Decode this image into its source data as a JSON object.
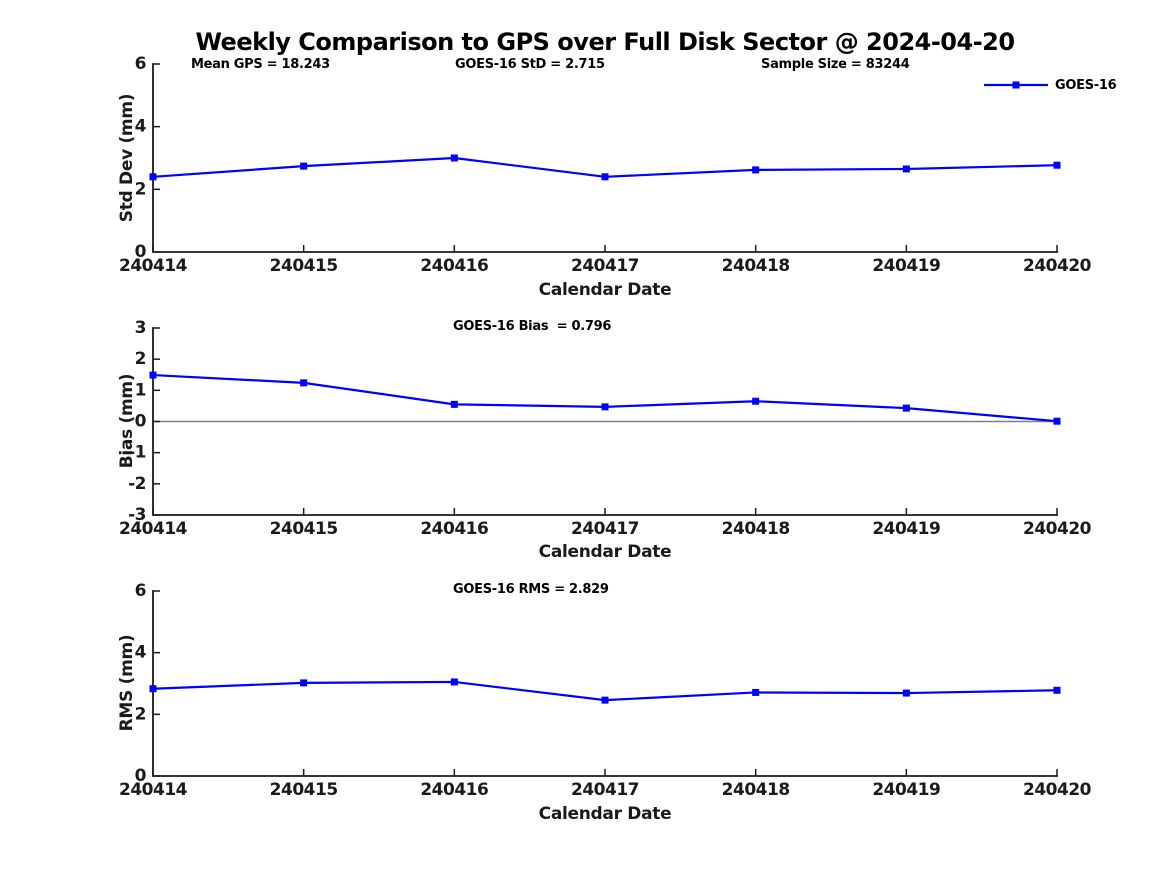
{
  "title": "Weekly Comparison to GPS over Full Disk Sector @ 2024-04-20",
  "legend": {
    "label": "GOES-16"
  },
  "colors": {
    "line": "#0000FF",
    "axis": "#1A1A1A",
    "text": "#000000",
    "zero_line": "#808080",
    "background": "#FFFFFF"
  },
  "chart_data": [
    {
      "type": "line",
      "name": "std-dev-subplot",
      "annotations": [
        {
          "text": "Mean GPS = 18.243"
        },
        {
          "text": "GOES-16 StD = 2.715"
        },
        {
          "text": "Sample Size = 83244"
        }
      ],
      "categories": [
        "240414",
        "240415",
        "240416",
        "240417",
        "240418",
        "240419",
        "240420"
      ],
      "series": [
        {
          "name": "GOES-16",
          "color": "#0000FF",
          "marker": "square",
          "values": [
            2.4,
            2.74,
            3.0,
            2.4,
            2.62,
            2.65,
            2.77
          ]
        }
      ],
      "xlabel": "Calendar Date",
      "ylabel": "Std Dev (mm)",
      "ylim": [
        0,
        6
      ],
      "yticks": [
        0,
        2,
        4,
        6
      ],
      "ytick_labels": [
        "0",
        "2",
        "4",
        "6"
      ],
      "zero_line": false,
      "grid": false,
      "legend_position": "top-right"
    },
    {
      "type": "line",
      "name": "bias-subplot",
      "annotations": [
        {
          "text": "GOES-16 Bias  = 0.796"
        }
      ],
      "categories": [
        "240414",
        "240415",
        "240416",
        "240417",
        "240418",
        "240419",
        "240420"
      ],
      "series": [
        {
          "name": "GOES-16",
          "color": "#0000FF",
          "marker": "square",
          "values": [
            1.49,
            1.24,
            0.55,
            0.47,
            0.65,
            0.43,
            0.01
          ]
        }
      ],
      "xlabel": "Calendar Date",
      "ylabel": "Bias (mm)",
      "ylim": [
        -3,
        3
      ],
      "yticks": [
        -3,
        -2,
        -1,
        0,
        1,
        2,
        3
      ],
      "ytick_labels": [
        "-3",
        "-2",
        "-1",
        "0",
        "1",
        "2",
        "3"
      ],
      "zero_line": true,
      "grid": false
    },
    {
      "type": "line",
      "name": "rms-subplot",
      "annotations": [
        {
          "text": "GOES-16 RMS = 2.829"
        }
      ],
      "categories": [
        "240414",
        "240415",
        "240416",
        "240417",
        "240418",
        "240419",
        "240420"
      ],
      "series": [
        {
          "name": "GOES-16",
          "color": "#0000FF",
          "marker": "square",
          "values": [
            2.83,
            3.02,
            3.05,
            2.46,
            2.71,
            2.69,
            2.78
          ]
        }
      ],
      "xlabel": "Calendar Date",
      "ylabel": "RMS (mm)",
      "ylim": [
        0,
        6
      ],
      "yticks": [
        0,
        2,
        4,
        6
      ],
      "ytick_labels": [
        "0",
        "2",
        "4",
        "6"
      ],
      "zero_line": false,
      "grid": false
    }
  ]
}
